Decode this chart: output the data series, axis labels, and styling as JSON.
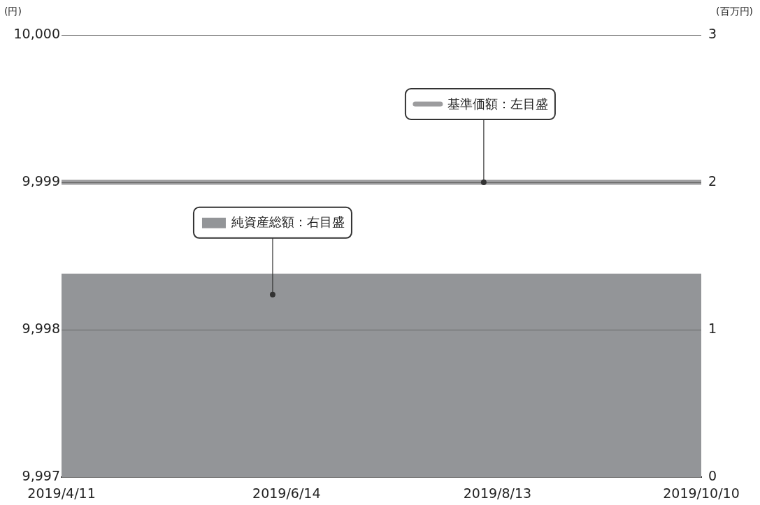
{
  "chart_data": {
    "type": "line",
    "ylabel": "(円)",
    "y2label": "(百万円)",
    "x": [
      "2019-04-11",
      "2019-10-10"
    ],
    "series": [
      {
        "name": "純資産総額：右目盛",
        "type": "area",
        "axis": "y2",
        "color": "#939598",
        "values": [
          1.38,
          1.38
        ]
      },
      {
        "name": "基準価額：左目盛",
        "type": "line",
        "color": "#9c9c9e",
        "values": [
          9999,
          9999
        ]
      }
    ],
    "xlim": [
      "2019-04-11",
      "2019-10-10"
    ],
    "xticks": [
      {
        "value": "2019-04-11",
        "label": "2019/4/11"
      },
      {
        "value": "2019-06-14",
        "label": "2019/6/14"
      },
      {
        "value": "2019-08-13",
        "label": "2019/8/13"
      },
      {
        "value": "2019-10-10",
        "label": "2019/10/10"
      }
    ],
    "ylim": [
      9997,
      10000
    ],
    "yticks": [
      {
        "value": 9997,
        "label": "9,997"
      },
      {
        "value": 9998,
        "label": "9,998"
      },
      {
        "value": 9999,
        "label": "9,999"
      },
      {
        "value": 10000,
        "label": "10,000"
      }
    ],
    "y2lim": [
      0,
      3
    ],
    "y2ticks": [
      0,
      1,
      2,
      3
    ],
    "grid": "y",
    "legend": "top",
    "marker": "none",
    "line_style": "solid"
  }
}
